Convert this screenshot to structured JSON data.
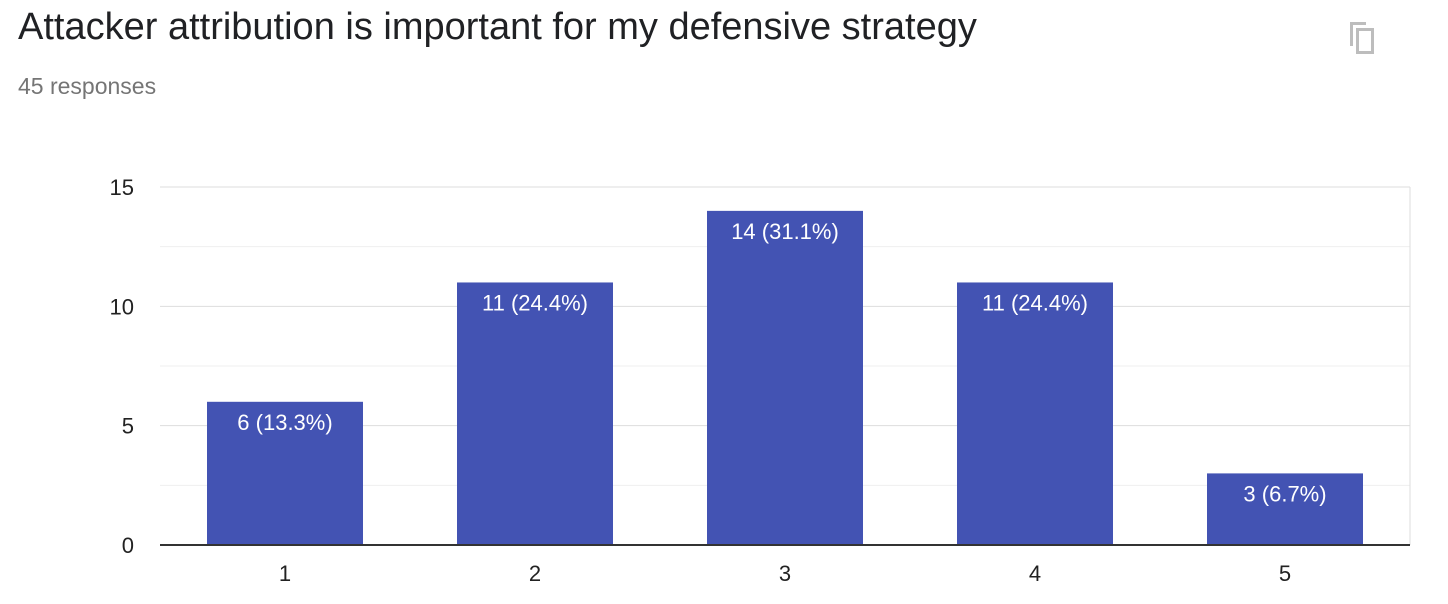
{
  "header": {
    "title": "Attacker attribution is important for my defensive strategy",
    "response_count": "45 responses",
    "copy_icon": "copy-icon"
  },
  "colors": {
    "bar": "#4353b3",
    "bar_label": "#ffffff",
    "grid_major": "#dddddd",
    "grid_minor": "#efefef",
    "axis": "#333333",
    "tick_text": "#222222"
  },
  "chart_data": {
    "type": "bar",
    "categories": [
      "1",
      "2",
      "3",
      "4",
      "5"
    ],
    "values": [
      6,
      11,
      14,
      11,
      3
    ],
    "data_labels": [
      "6 (13.3%)",
      "11 (24.4%)",
      "14 (31.1%)",
      "11 (24.4%)",
      "3 (6.7%)"
    ],
    "y_ticks": [
      0,
      5,
      10,
      15
    ],
    "ylim": [
      0,
      15
    ],
    "title": "",
    "xlabel": "",
    "ylabel": "",
    "grid": true,
    "legend": "none"
  }
}
